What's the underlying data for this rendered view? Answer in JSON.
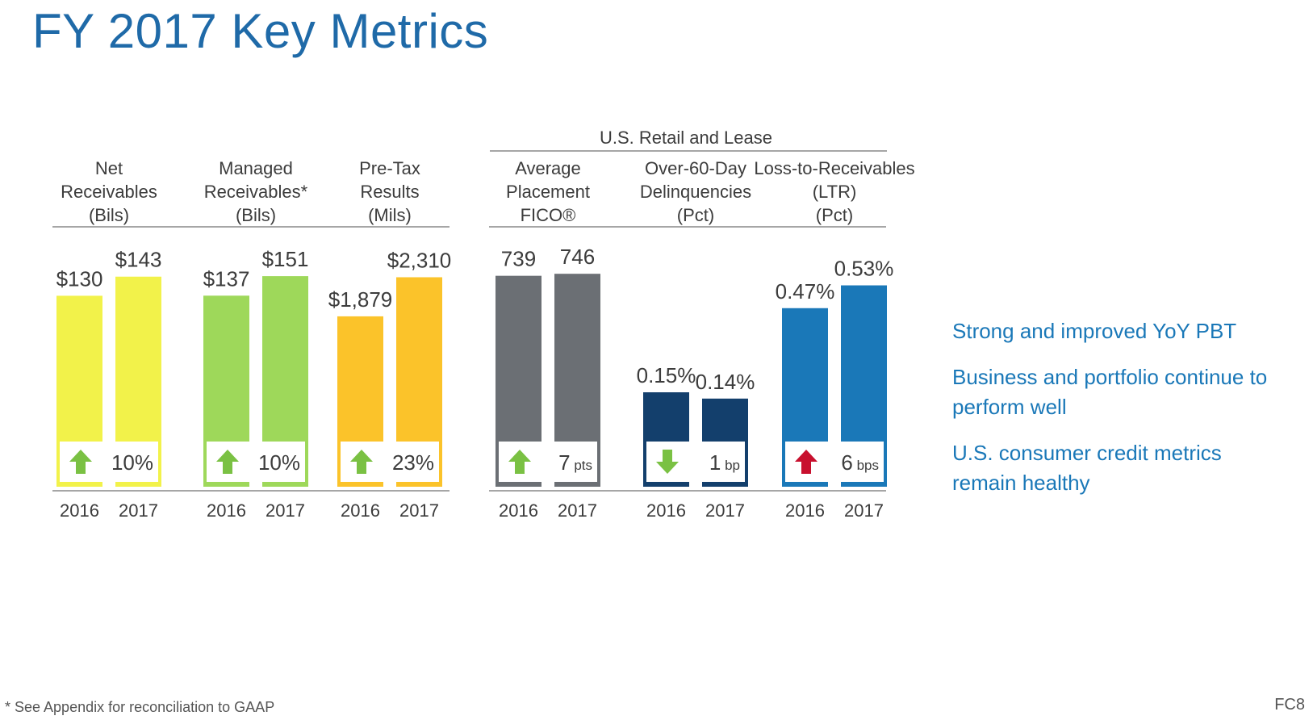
{
  "page": {
    "title": "FY 2017 Key Metrics",
    "group_header": "U.S. Retail and Lease",
    "bullets": [
      "Strong  and improved YoY PBT",
      "Business and portfolio continue to perform well",
      "U.S. consumer credit metrics remain healthy"
    ],
    "footnote": "*  See Appendix for reconciliation to GAAP",
    "page_number": "FC8"
  },
  "chart_data": [
    {
      "type": "bar",
      "header": [
        "Net",
        "Receivables",
        "(Bils)"
      ],
      "categories": [
        "2016",
        "2017"
      ],
      "values": [
        130,
        143
      ],
      "value_labels": [
        "$130",
        "$143"
      ],
      "ylim": [
        0,
        150
      ],
      "color": "#f2f24a",
      "change": {
        "direction": "up",
        "value": "10%",
        "unit": "",
        "arrow_color": "#7ac143"
      }
    },
    {
      "type": "bar",
      "header": [
        "Managed",
        "Receivables*",
        "(Bils)"
      ],
      "categories": [
        "2016",
        "2017"
      ],
      "values": [
        137,
        151
      ],
      "value_labels": [
        "$137",
        "$151"
      ],
      "ylim": [
        0,
        158
      ],
      "color": "#9ed85a",
      "change": {
        "direction": "up",
        "value": "10%",
        "unit": "",
        "arrow_color": "#7ac143"
      }
    },
    {
      "type": "bar",
      "header": [
        "Pre-Tax",
        "Results",
        "(Mils)"
      ],
      "categories": [
        "2016",
        "2017"
      ],
      "values": [
        1879,
        2310
      ],
      "value_labels": [
        "$1,879",
        "$2,310"
      ],
      "ylim": [
        0,
        2430
      ],
      "color": "#fbc32a",
      "change": {
        "direction": "up",
        "value": "23%",
        "unit": "",
        "arrow_color": "#7ac143"
      }
    },
    {
      "type": "bar",
      "header": [
        "Average",
        "Placement",
        "FICO®"
      ],
      "categories": [
        "2016",
        "2017"
      ],
      "values": [
        739,
        746
      ],
      "value_labels": [
        "739",
        "746"
      ],
      "ylim": [
        0,
        772
      ],
      "color": "#6b6f74",
      "change": {
        "direction": "up",
        "value": "7",
        "unit": "pts",
        "arrow_color": "#7ac143"
      }
    },
    {
      "type": "bar",
      "header": [
        "Over-60-Day",
        "Delinquencies",
        "(Pct)"
      ],
      "categories": [
        "2016",
        "2017"
      ],
      "values": [
        0.15,
        0.14
      ],
      "value_labels": [
        "0.15%",
        "0.14%"
      ],
      "ylim": [
        0,
        0.35
      ],
      "color": "#133f6c",
      "change": {
        "direction": "down",
        "value": "1",
        "unit": "bp",
        "arrow_color": "#7ac143"
      }
    },
    {
      "type": "bar",
      "header": [
        "Loss-to-Receivables",
        "(LTR)",
        "(Pct)"
      ],
      "categories": [
        "2016",
        "2017"
      ],
      "values": [
        0.47,
        0.53
      ],
      "value_labels": [
        "0.47%",
        "0.53%"
      ],
      "ylim": [
        0,
        0.58
      ],
      "color": "#1a78b8",
      "change": {
        "direction": "up",
        "value": "6",
        "unit": "bps",
        "arrow_color": "#c8102e"
      }
    }
  ]
}
